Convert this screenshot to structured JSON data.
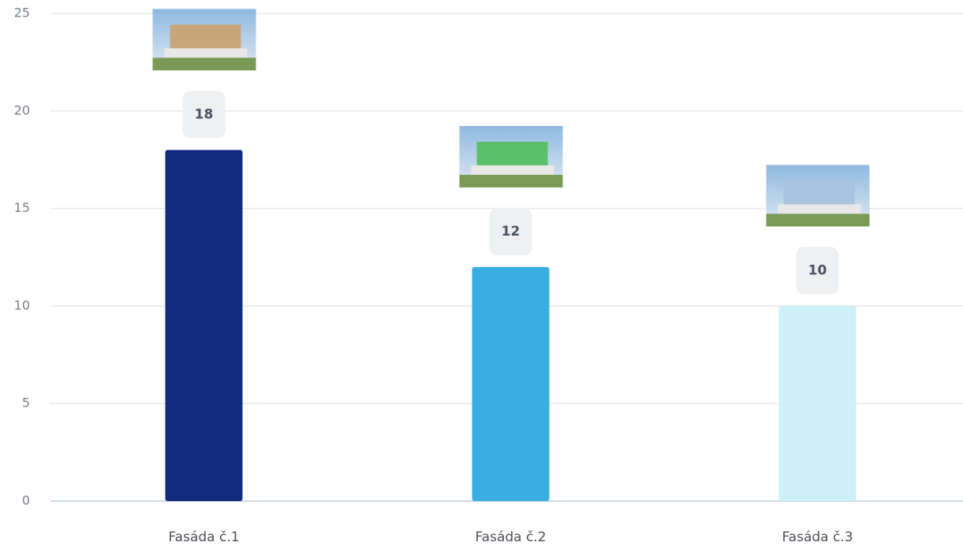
{
  "chart_data": {
    "type": "bar",
    "categories": [
      "Fasáda č.1",
      "Fasáda č.2",
      "Fasáda č.3"
    ],
    "values": [
      18,
      12,
      10
    ],
    "colors": [
      "#122b7c",
      "#3aaee3",
      "#cdf0f9"
    ],
    "ylim": [
      0,
      25
    ],
    "yticks": [
      0,
      5,
      10,
      15,
      20,
      25
    ],
    "grid": true
  }
}
